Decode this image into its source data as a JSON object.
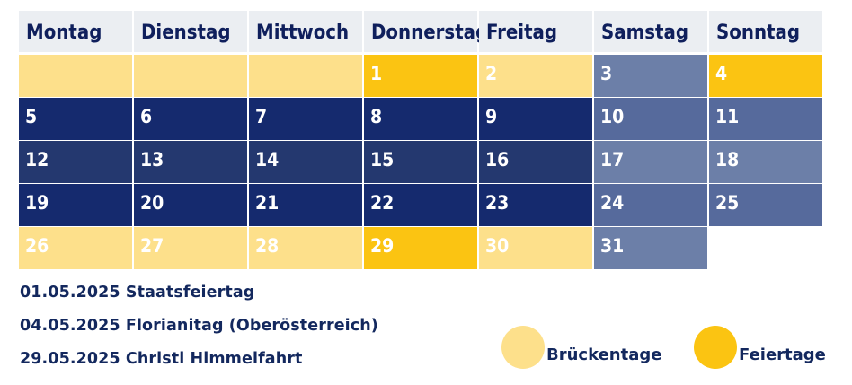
{
  "colors": {
    "header_bg": "#ebeef2",
    "header_text": "#0f1f5c",
    "weekday": "#152a6e",
    "weekday_alt": "#24386f",
    "weekend": "#566a9c",
    "weekend_light": "#6c7fa8",
    "bridge_day": "#fde08b",
    "holiday": "#fbc412"
  },
  "calendar": {
    "days_of_week": [
      "Montag",
      "Dienstag",
      "Mittwoch",
      "Donnerstag",
      "Freitag",
      "Samstag",
      "Sonntag"
    ],
    "weeks": [
      [
        {
          "label": "",
          "kind": "empty"
        },
        {
          "label": "",
          "kind": "empty"
        },
        {
          "label": "",
          "kind": "empty"
        },
        {
          "label": "1",
          "kind": "holiday"
        },
        {
          "label": "2",
          "kind": "bridge"
        },
        {
          "label": "3",
          "kind": "weekend-light"
        },
        {
          "label": "4",
          "kind": "holiday"
        }
      ],
      [
        {
          "label": "5",
          "kind": "weekday"
        },
        {
          "label": "6",
          "kind": "weekday"
        },
        {
          "label": "7",
          "kind": "weekday"
        },
        {
          "label": "8",
          "kind": "weekday"
        },
        {
          "label": "9",
          "kind": "weekday"
        },
        {
          "label": "10",
          "kind": "weekend"
        },
        {
          "label": "11",
          "kind": "weekend"
        }
      ],
      [
        {
          "label": "12",
          "kind": "weekday-alt"
        },
        {
          "label": "13",
          "kind": "weekday-alt"
        },
        {
          "label": "14",
          "kind": "weekday-alt"
        },
        {
          "label": "15",
          "kind": "weekday-alt"
        },
        {
          "label": "16",
          "kind": "weekday-alt"
        },
        {
          "label": "17",
          "kind": "weekend-light"
        },
        {
          "label": "18",
          "kind": "weekend-light"
        }
      ],
      [
        {
          "label": "19",
          "kind": "weekday"
        },
        {
          "label": "20",
          "kind": "weekday"
        },
        {
          "label": "21",
          "kind": "weekday"
        },
        {
          "label": "22",
          "kind": "weekday"
        },
        {
          "label": "23",
          "kind": "weekday"
        },
        {
          "label": "24",
          "kind": "weekend"
        },
        {
          "label": "25",
          "kind": "weekend"
        }
      ],
      [
        {
          "label": "26",
          "kind": "bridge"
        },
        {
          "label": "27",
          "kind": "bridge"
        },
        {
          "label": "28",
          "kind": "bridge"
        },
        {
          "label": "29",
          "kind": "holiday"
        },
        {
          "label": "30",
          "kind": "bridge"
        },
        {
          "label": "31",
          "kind": "weekend-light"
        }
      ]
    ]
  },
  "holidays": [
    "01.05.2025 Staatsfeiertag",
    "04.05.2025 Florianitag (Oberösterreich)",
    "29.05.2025 Christi Himmelfahrt"
  ],
  "legend": {
    "bridge_label": "Brückentage",
    "holiday_label": "Feiertage"
  }
}
